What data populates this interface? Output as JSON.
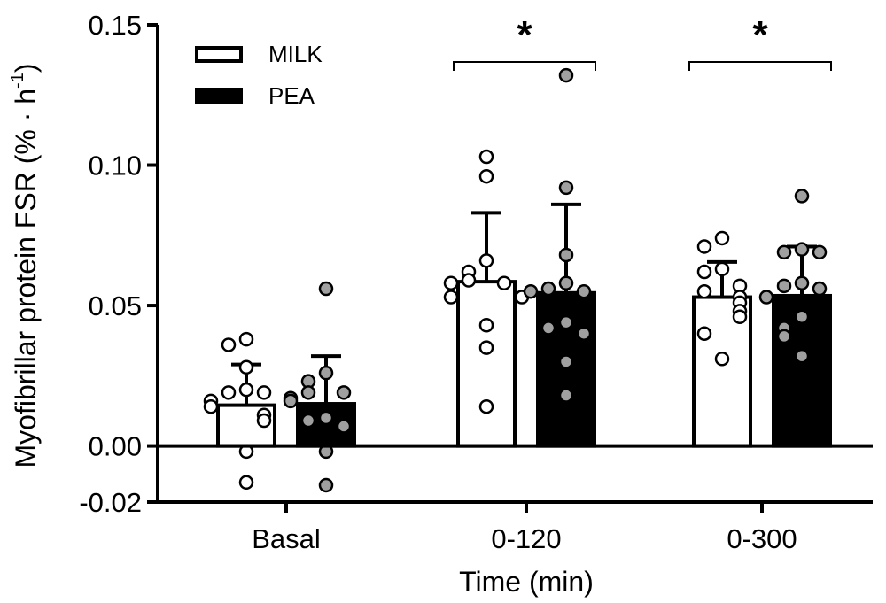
{
  "chart_data": {
    "type": "bar",
    "xlabel": "Time (min)",
    "ylabel": "Myofibrillar protein FSR (% · h",
    "ylabel_sup": "-1",
    "ylabel_close": ")",
    "ylim": [
      -0.02,
      0.15
    ],
    "yticks": [
      -0.02,
      0.0,
      0.05,
      0.1,
      0.15
    ],
    "ytick_labels": [
      "-0.02",
      "0.00",
      "0.05",
      "0.10",
      "0.15"
    ],
    "categories": [
      "Basal",
      "0-120",
      "0-300"
    ],
    "legend": {
      "position": "top-left"
    },
    "series": [
      {
        "name": "MILK",
        "bar_color": "#ffffff",
        "point_color": "#ffffff",
        "values": [
          0.0145,
          0.0585,
          0.053
        ],
        "sd": [
          0.0145,
          0.0245,
          0.0125
        ],
        "points": [
          [
            0.038,
            0.036,
            0.028,
            0.02,
            0.019,
            0.019,
            0.016,
            0.014,
            0.011,
            0.009,
            -0.002,
            -0.013
          ],
          [
            0.103,
            0.096,
            0.066,
            0.062,
            0.059,
            0.058,
            0.058,
            0.053,
            0.053,
            0.043,
            0.035,
            0.014
          ],
          [
            0.074,
            0.071,
            0.063,
            0.062,
            0.057,
            0.055,
            0.053,
            0.051,
            0.048,
            0.046,
            0.04,
            0.031
          ]
        ]
      },
      {
        "name": "PEA",
        "bar_color": "#000000",
        "point_color": "#a0a0a0",
        "values": [
          0.015,
          0.0545,
          0.0535
        ],
        "sd": [
          0.017,
          0.0315,
          0.0175
        ],
        "points": [
          [
            0.056,
            0.026,
            0.023,
            0.019,
            0.019,
            0.017,
            0.016,
            0.01,
            0.009,
            0.007,
            -0.002,
            -0.014
          ],
          [
            0.132,
            0.092,
            0.068,
            0.058,
            0.056,
            0.055,
            0.055,
            0.044,
            0.042,
            0.04,
            0.03,
            0.018
          ],
          [
            0.089,
            0.07,
            0.069,
            0.069,
            0.058,
            0.057,
            0.056,
            0.053,
            0.046,
            0.042,
            0.039,
            0.032
          ]
        ]
      }
    ],
    "significance": [
      {
        "category": "0-120",
        "label": "*"
      },
      {
        "category": "0-300",
        "label": "*"
      }
    ]
  }
}
